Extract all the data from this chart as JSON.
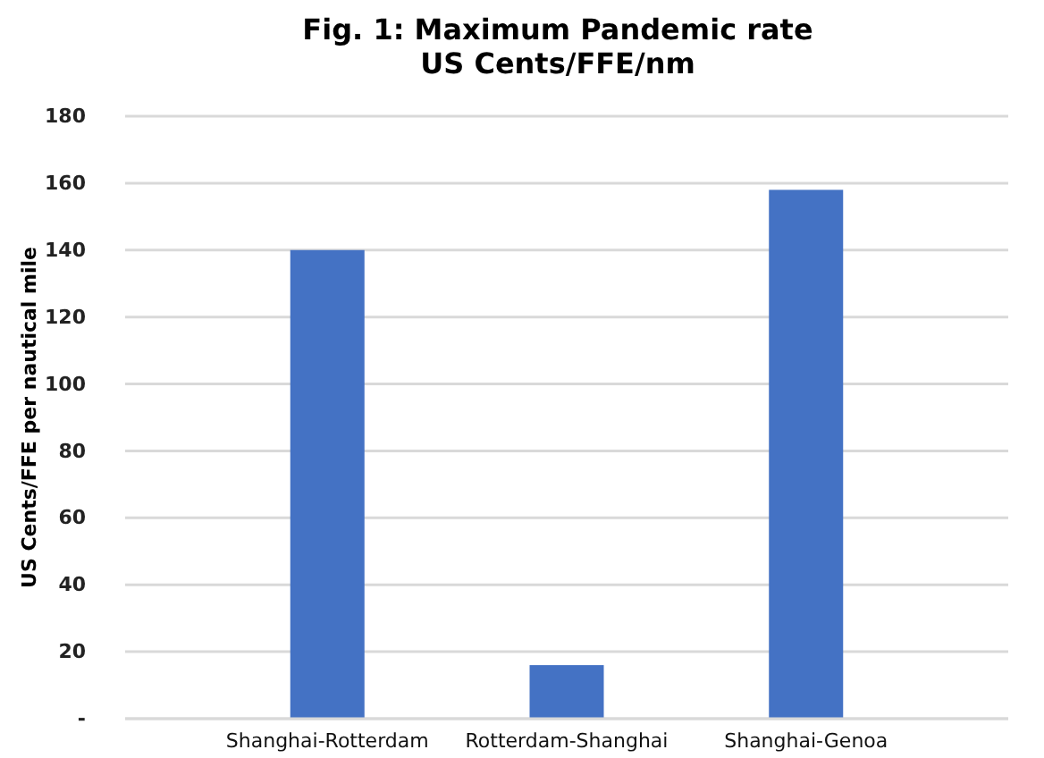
{
  "chart_data": {
    "type": "bar",
    "title": "Fig. 1: Maximum Pandemic rate\nUS Cents/FFE/nm",
    "ylabel": "US Cents/FFE per nautical mile",
    "categories": [
      "Shanghai-Rotterdam",
      "Rotterdam-Shanghai",
      "Shanghai-Genoa"
    ],
    "values": [
      140,
      16,
      158
    ],
    "color": "#4472c4",
    "ylim": [
      0,
      180
    ],
    "yticks": [
      {
        "value": 0,
        "label": "-"
      },
      20,
      40,
      60,
      80,
      100,
      120,
      140,
      160,
      180
    ],
    "grid": "y"
  }
}
